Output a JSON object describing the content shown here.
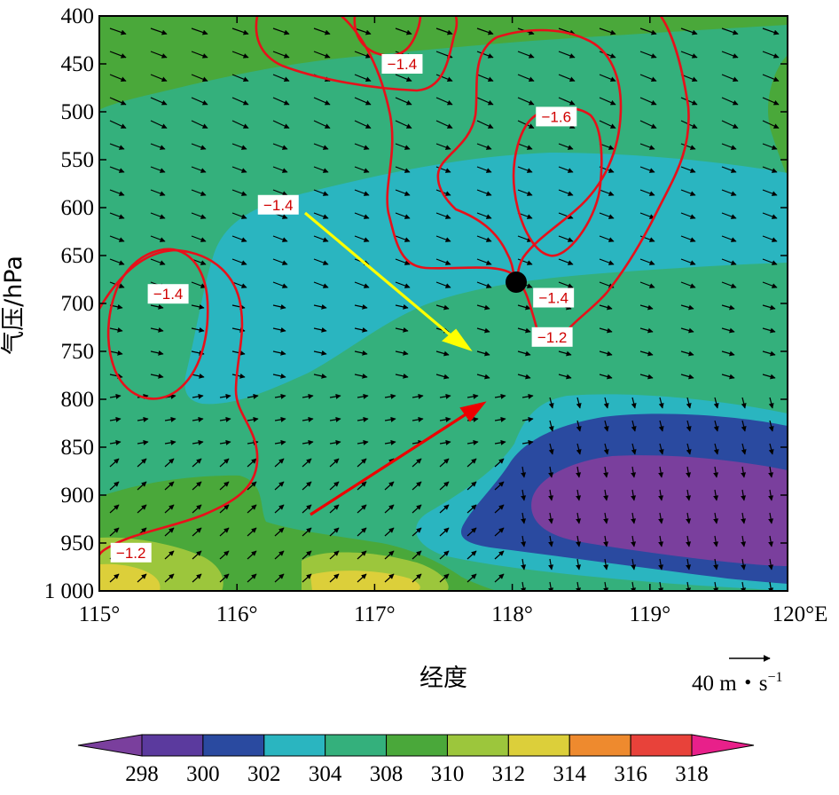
{
  "chart_data": {
    "type": "contour",
    "xlabel": "经度",
    "ylabel": "气压/hPa",
    "x_ticks": [
      "115°",
      "116°",
      "117°",
      "118°",
      "119°",
      "120°E"
    ],
    "x_tick_values": [
      115,
      116,
      117,
      118,
      119,
      120
    ],
    "y_ticks": [
      "400",
      "450",
      "500",
      "550",
      "600",
      "650",
      "700",
      "750",
      "800",
      "850",
      "900",
      "950",
      "1 000"
    ],
    "y_tick_values": [
      400,
      450,
      500,
      550,
      600,
      650,
      700,
      750,
      800,
      850,
      900,
      950,
      1000
    ],
    "xlim": [
      115,
      120
    ],
    "ylim": [
      400,
      1000
    ],
    "y_inverted": true,
    "colorbar": {
      "labels": [
        "298",
        "300",
        "302",
        "304",
        "308",
        "310",
        "312",
        "314",
        "316",
        "318"
      ],
      "colors": [
        "#7a3f9d",
        "#5b3a9e",
        "#2a4aa0",
        "#2ab5c0",
        "#34b07c",
        "#4aa83a",
        "#9cc63c",
        "#dccf3a",
        "#ee8a2e",
        "#e8423a",
        "#e8208a"
      ]
    },
    "contour_labels": [
      {
        "text": "−1.4",
        "lon": 117.2,
        "p": 450
      },
      {
        "text": "−1.6",
        "lon": 118.32,
        "p": 505
      },
      {
        "text": "−1.4",
        "lon": 116.3,
        "p": 597
      },
      {
        "text": "−1.4",
        "lon": 115.5,
        "p": 690
      },
      {
        "text": "−1.4",
        "lon": 118.3,
        "p": 694
      },
      {
        "text": "−1.2",
        "lon": 118.29,
        "p": 735
      },
      {
        "text": "−1.2",
        "lon": 115.23,
        "p": 960
      }
    ],
    "vector_reference": {
      "label": "40 m・s",
      "superscript": "−1"
    },
    "marker": {
      "lon": 118.05,
      "p": 676
    },
    "annotation_arrows": [
      {
        "color": "#ffff00",
        "from": [
          116.5,
          603
        ],
        "to": [
          117.75,
          750
        ]
      },
      {
        "color": "#ee0000",
        "from": [
          116.55,
          922
        ],
        "to": [
          117.82,
          803
        ]
      }
    ]
  }
}
